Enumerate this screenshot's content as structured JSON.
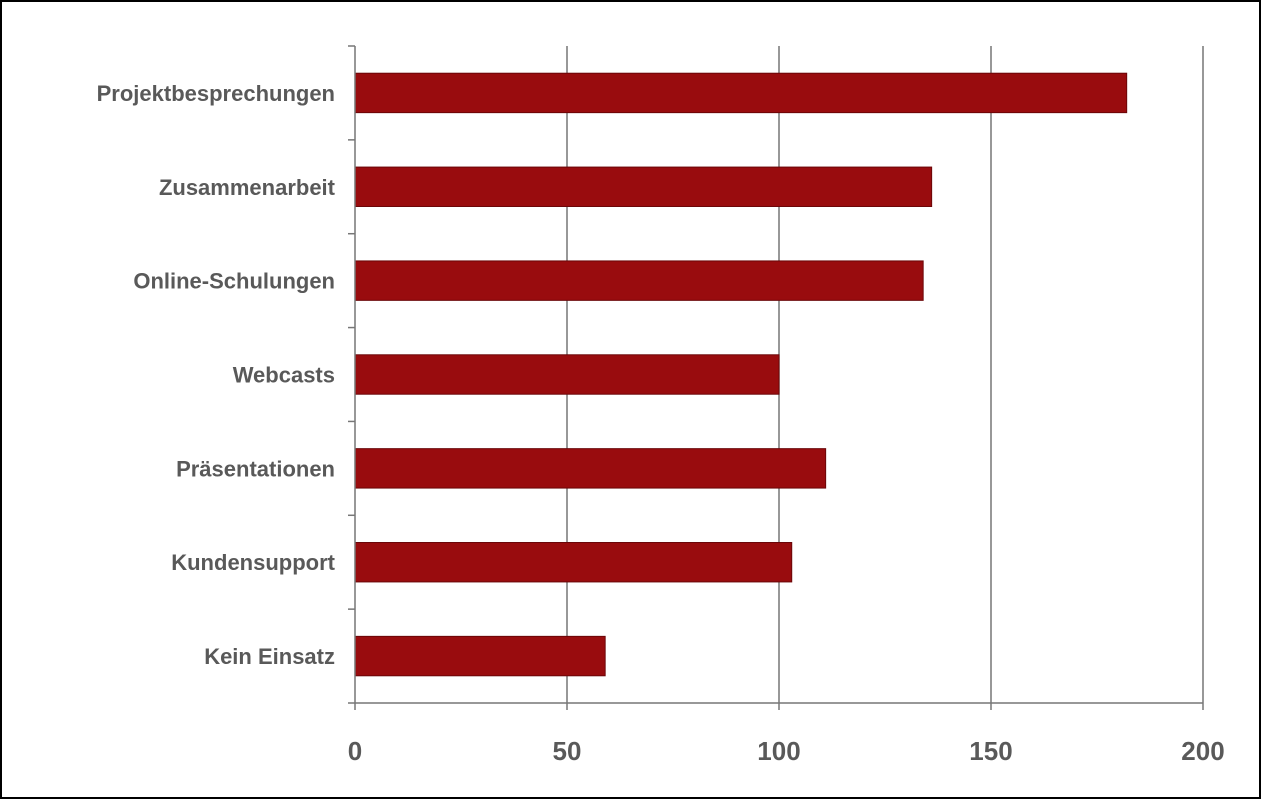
{
  "chart_data": {
    "type": "bar",
    "orientation": "horizontal",
    "title": "",
    "xlabel": "",
    "ylabel": "",
    "categories": [
      "Projektbesprechungen",
      "Zusammenarbeit",
      "Online-Schulungen",
      "Webcasts",
      "Präsentationen",
      "Kundensupport",
      "Kein Einsatz"
    ],
    "values": [
      182,
      136,
      134,
      100,
      111,
      103,
      59
    ],
    "xlim": [
      0,
      200
    ],
    "x_ticks": [
      0,
      50,
      100,
      150,
      200
    ],
    "grid": "vertical",
    "bar_color": "#990C0E",
    "legend": "none"
  }
}
